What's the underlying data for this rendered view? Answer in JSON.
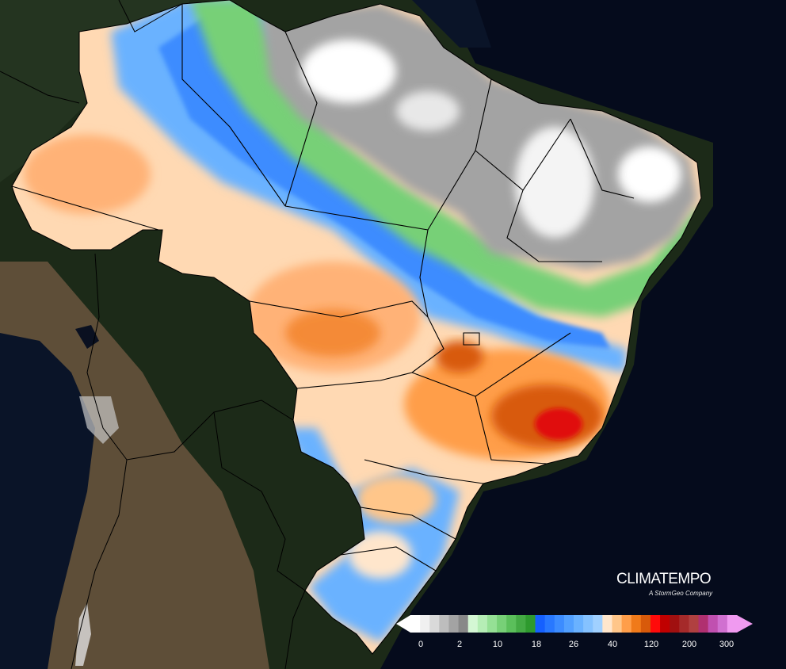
{
  "brand": {
    "name": "CLIMATEMPO",
    "tagline": "A StormGeo Company"
  },
  "legend": {
    "ticks": [
      "0",
      "2",
      "10",
      "18",
      "26",
      "40",
      "120",
      "200",
      "300"
    ],
    "colors": [
      "#ffffff",
      "#f0f0f0",
      "#d9d9d9",
      "#bdbdbd",
      "#a3a3a3",
      "#888888",
      "#d4f7d4",
      "#b5edb5",
      "#95e095",
      "#77d077",
      "#5bbf5b",
      "#44aa44",
      "#2e9a2e",
      "#1560ff",
      "#2878ff",
      "#3c8cff",
      "#52a0ff",
      "#6ab2ff",
      "#85c2ff",
      "#a0d0ff",
      "#ffe6cc",
      "#ffc68a",
      "#ff9e4a",
      "#f07a1a",
      "#d85a0a",
      "#ff0a0a",
      "#c00000",
      "#a01010",
      "#a52a2a",
      "#b04040",
      "#b03070",
      "#c050b0",
      "#d070d0",
      "#f09af0"
    ]
  },
  "map": {
    "colors": {
      "land": "#1c2a18",
      "andes": "#6b5a42",
      "ocean": "#050b1c",
      "borders": "#000000"
    }
  }
}
